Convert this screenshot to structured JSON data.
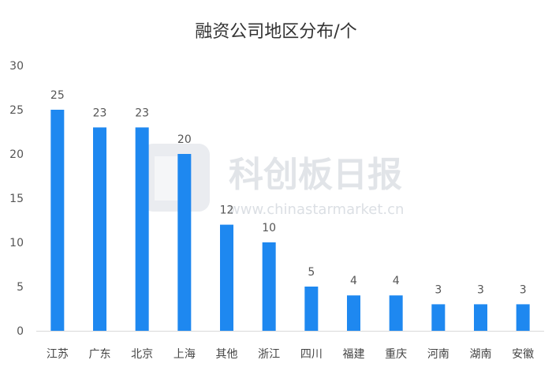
{
  "chart_data": {
    "type": "bar",
    "title": "融资公司地区分布/个",
    "categories": [
      "江苏",
      "广东",
      "北京",
      "上海",
      "其他",
      "浙江",
      "四川",
      "福建",
      "重庆",
      "河南",
      "湖南",
      "安徽"
    ],
    "values": [
      25,
      23,
      23,
      20,
      12,
      10,
      5,
      4,
      4,
      3,
      3,
      3
    ],
    "ylim": [
      0,
      30
    ],
    "yticks": [
      0,
      5,
      10,
      15,
      20,
      25,
      30
    ],
    "grid": false,
    "bar_color": "#1e88f0"
  },
  "watermark": {
    "name": "科创板日报",
    "url": "www.chinastarmarket.cn"
  }
}
